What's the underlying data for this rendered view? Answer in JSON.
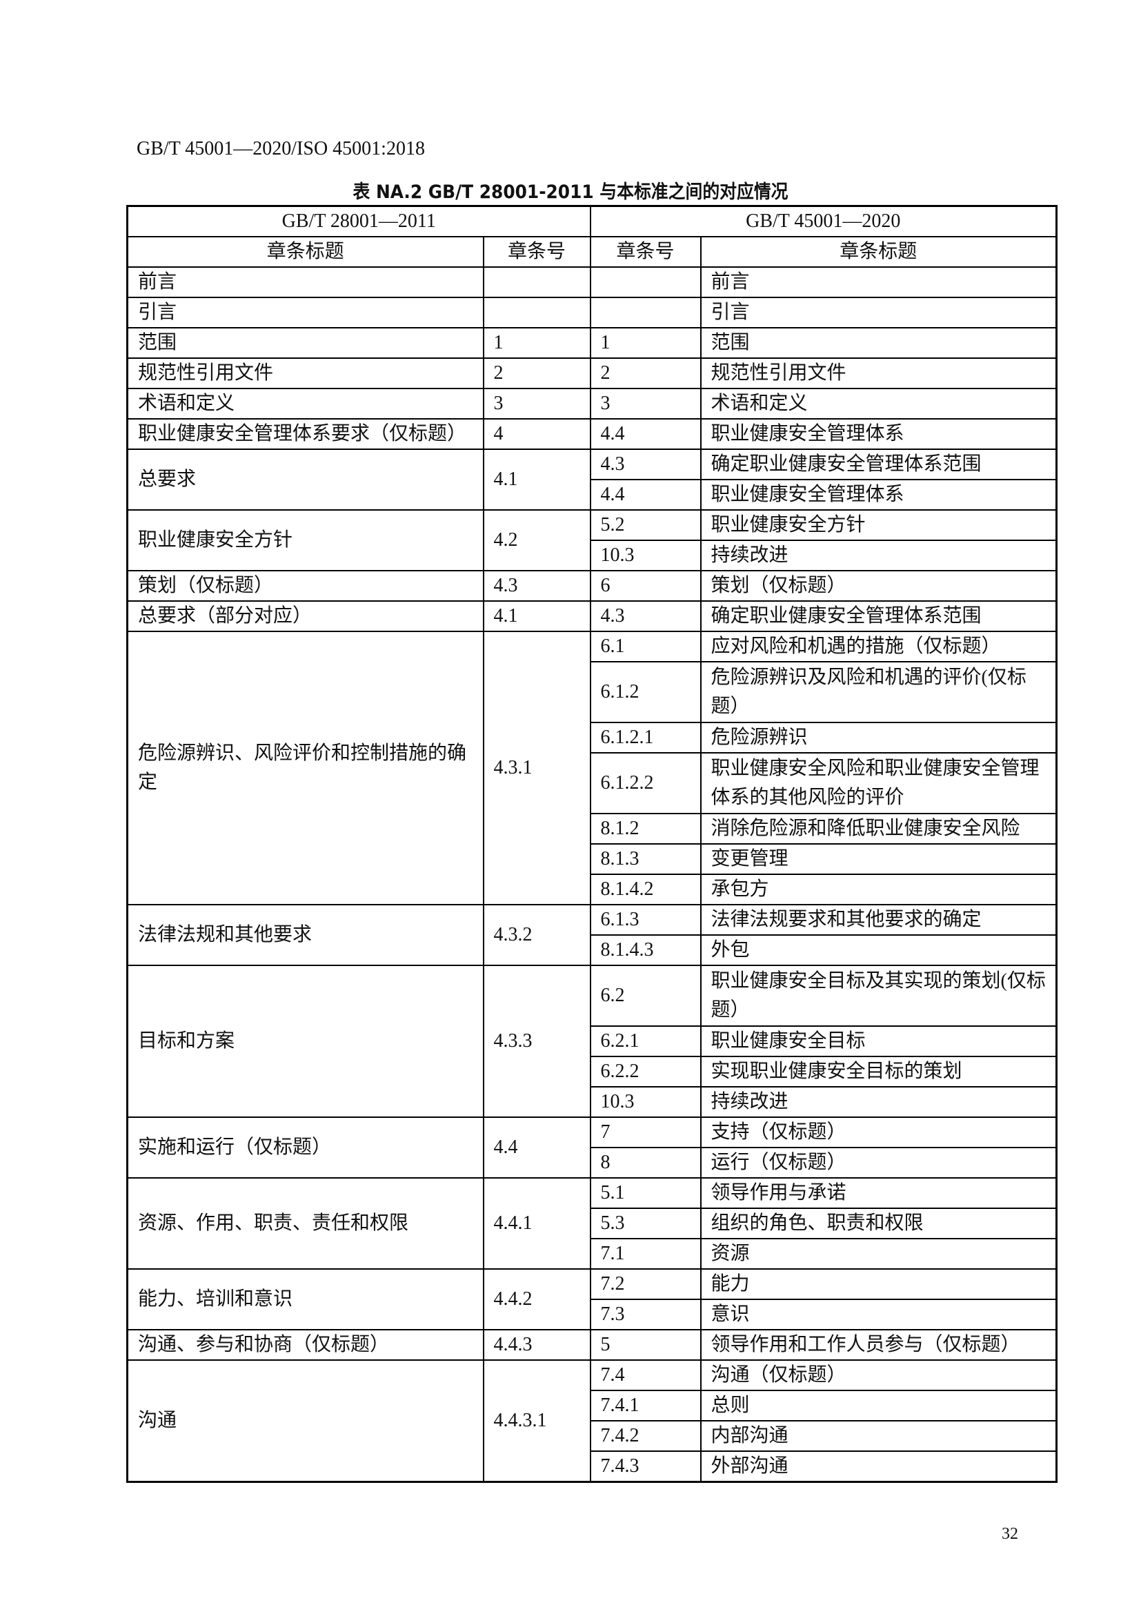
{
  "header": "GB/T 45001—2020/ISO 45001:2018",
  "caption": "表 NA.2 GB/T 28001-2011 与本标准之间的对应情况",
  "table": {
    "group_headers": [
      "GB/T 28001—2011",
      "GB/T 45001—2020"
    ],
    "columns": [
      "章条标题",
      "章条号",
      "章条号",
      "章条标题"
    ],
    "groups": [
      {
        "old_title": "前言",
        "old_no": "",
        "entries": [
          {
            "no": "",
            "title": "前言"
          }
        ]
      },
      {
        "old_title": "引言",
        "old_no": "",
        "entries": [
          {
            "no": "",
            "title": "引言"
          }
        ]
      },
      {
        "old_title": "范围",
        "old_no": "1",
        "entries": [
          {
            "no": "1",
            "title": "范围"
          }
        ]
      },
      {
        "old_title": "规范性引用文件",
        "old_no": "2",
        "entries": [
          {
            "no": "2",
            "title": "规范性引用文件"
          }
        ]
      },
      {
        "old_title": "术语和定义",
        "old_no": "3",
        "entries": [
          {
            "no": "3",
            "title": "术语和定义"
          }
        ]
      },
      {
        "old_title": "职业健康安全管理体系要求（仅标题）",
        "old_no": "4",
        "entries": [
          {
            "no": "4.4",
            "title": "职业健康安全管理体系"
          }
        ]
      },
      {
        "old_title": "总要求",
        "old_no": "4.1",
        "entries": [
          {
            "no": "4.3",
            "title": "确定职业健康安全管理体系范围"
          },
          {
            "no": "4.4",
            "title": "职业健康安全管理体系"
          }
        ]
      },
      {
        "old_title": "职业健康安全方针",
        "old_no": "4.2",
        "entries": [
          {
            "no": "5.2",
            "title": "职业健康安全方针"
          },
          {
            "no": "10.3",
            "title": "持续改进"
          }
        ]
      },
      {
        "old_title": "策划（仅标题）",
        "old_no": "4.3",
        "entries": [
          {
            "no": "6",
            "title": "策划（仅标题）"
          }
        ]
      },
      {
        "old_title": "总要求（部分对应）",
        "old_no": "4.1",
        "entries": [
          {
            "no": "4.3",
            "title": "确定职业健康安全管理体系范围"
          }
        ]
      },
      {
        "old_title": "危险源辨识、风险评价和控制措施的确定",
        "old_no": "4.3.1",
        "entries": [
          {
            "no": "6.1",
            "title": "应对风险和机遇的措施（仅标题）"
          },
          {
            "no": "6.1.2",
            "title": "危险源辨识及风险和机遇的评价(仅标题）",
            "two": true
          },
          {
            "no": "6.1.2.1",
            "title": "危险源辨识"
          },
          {
            "no": "6.1.2.2",
            "title": "职业健康安全风险和职业健康安全管理体系的其他风险的评价",
            "two": true
          },
          {
            "no": "8.1.2",
            "title": "消除危险源和降低职业健康安全风险"
          },
          {
            "no": "8.1.3",
            "title": "变更管理"
          },
          {
            "no": "8.1.4.2",
            "title": "承包方"
          }
        ]
      },
      {
        "old_title": "法律法规和其他要求",
        "old_no": "4.3.2",
        "entries": [
          {
            "no": "6.1.3",
            "title": "法律法规要求和其他要求的确定"
          },
          {
            "no": "8.1.4.3",
            "title": "外包"
          }
        ]
      },
      {
        "old_title": "目标和方案",
        "old_no": "4.3.3",
        "entries": [
          {
            "no": "6.2",
            "title": "职业健康安全目标及其实现的策划(仅标题）",
            "two": true
          },
          {
            "no": "6.2.1",
            "title": "职业健康安全目标"
          },
          {
            "no": "6.2.2",
            "title": "实现职业健康安全目标的策划"
          },
          {
            "no": "10.3",
            "title": "持续改进"
          }
        ]
      },
      {
        "old_title": "实施和运行（仅标题）",
        "old_no": "4.4",
        "entries": [
          {
            "no": "7",
            "title": "支持（仅标题）"
          },
          {
            "no": "8",
            "title": "运行（仅标题）"
          }
        ]
      },
      {
        "old_title": "资源、作用、职责、责任和权限",
        "old_no": "4.4.1",
        "entries": [
          {
            "no": "5.1",
            "title": "领导作用与承诺"
          },
          {
            "no": "5.3",
            "title": "组织的角色、职责和权限"
          },
          {
            "no": "7.1",
            "title": "资源"
          }
        ]
      },
      {
        "old_title": "能力、培训和意识",
        "old_no": "4.4.2",
        "entries": [
          {
            "no": "7.2",
            "title": "能力"
          },
          {
            "no": "7.3",
            "title": "意识"
          }
        ]
      },
      {
        "old_title": "沟通、参与和协商（仅标题）",
        "old_no": "4.4.3",
        "entries": [
          {
            "no": "5",
            "title": "领导作用和工作人员参与（仅标题）"
          }
        ]
      },
      {
        "old_title": "沟通",
        "old_no": "4.4.3.1",
        "entries": [
          {
            "no": "7.4",
            "title": "沟通（仅标题）"
          },
          {
            "no": "7.4.1",
            "title": "总则"
          },
          {
            "no": "7.4.2",
            "title": "内部沟通"
          },
          {
            "no": "7.4.3",
            "title": "外部沟通"
          }
        ]
      }
    ]
  },
  "page_number": "32"
}
